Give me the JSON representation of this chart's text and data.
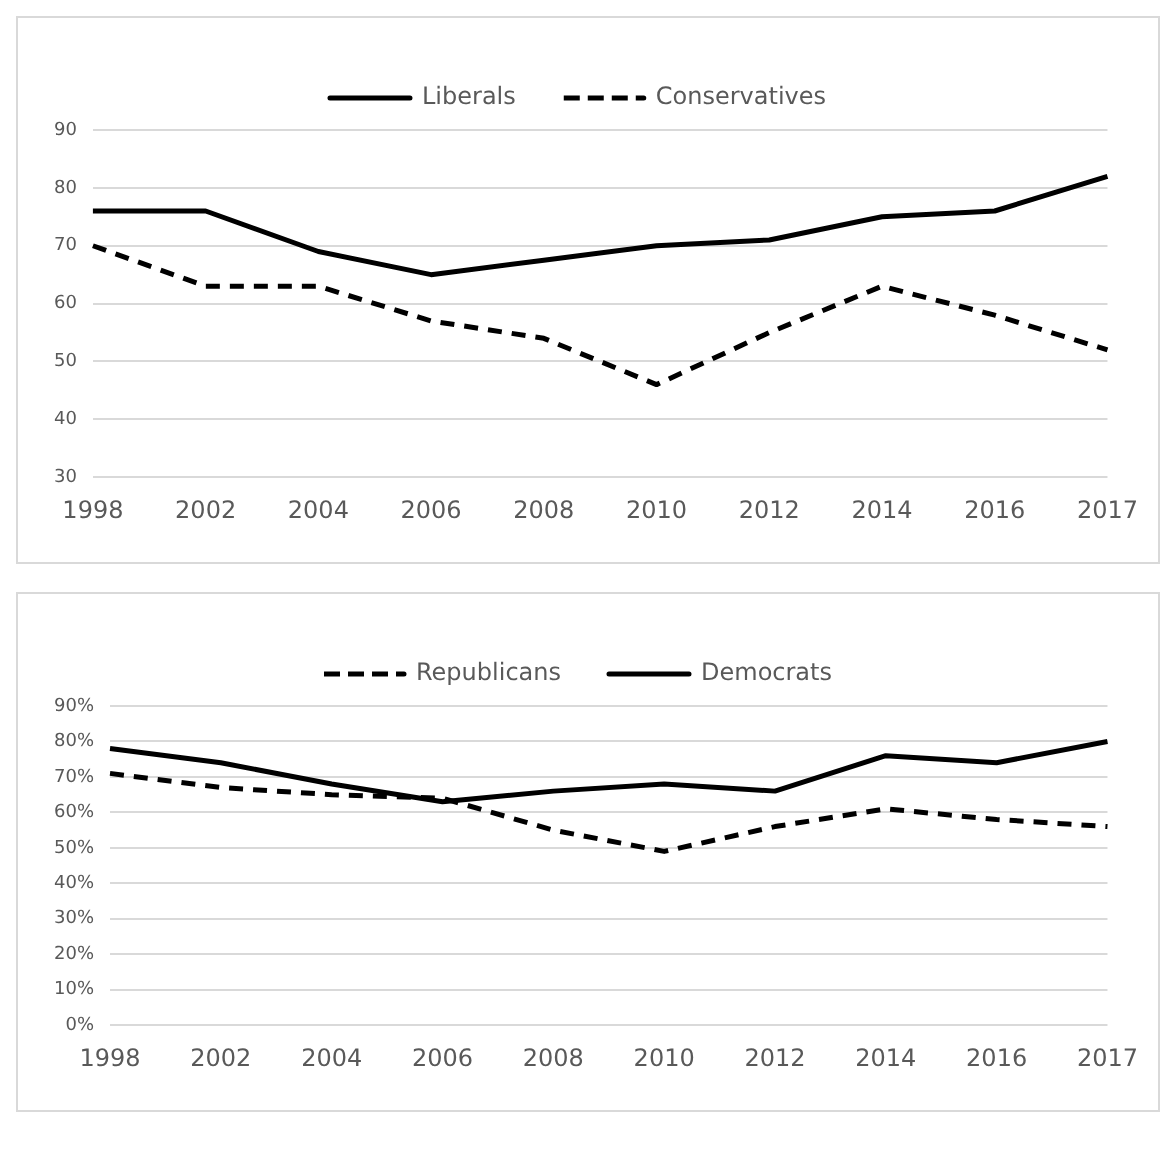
{
  "chart_data": [
    {
      "type": "line",
      "categories": [
        "1998",
        "2002",
        "2004",
        "2006",
        "2008",
        "2010",
        "2012",
        "2014",
        "2016",
        "2017"
      ],
      "ylim": [
        30,
        90
      ],
      "yticks": [
        30,
        40,
        50,
        60,
        70,
        80,
        90
      ],
      "grid": "y",
      "legend": "top",
      "marker": "none",
      "series": [
        {
          "name": "Liberals",
          "color": "#000000",
          "line_style": "solid",
          "values": [
            76,
            76,
            69,
            65,
            67.5,
            70,
            71,
            75,
            76,
            82
          ]
        },
        {
          "name": "Conservatives",
          "color": "#000000",
          "line_style": "dashed",
          "values": [
            70,
            63,
            63,
            57,
            54,
            46,
            55,
            63,
            58,
            52
          ]
        }
      ]
    },
    {
      "type": "line",
      "categories": [
        "1998",
        "2002",
        "2004",
        "2006",
        "2008",
        "2010",
        "2012",
        "2014",
        "2016",
        "2017"
      ],
      "ylim": [
        0,
        90
      ],
      "yticks": [
        {
          "value": 0,
          "label": "0%"
        },
        {
          "value": 10,
          "label": "10%"
        },
        {
          "value": 20,
          "label": "20%"
        },
        {
          "value": 30,
          "label": "30%"
        },
        {
          "value": 40,
          "label": "40%"
        },
        {
          "value": 50,
          "label": "50%"
        },
        {
          "value": 60,
          "label": "60%"
        },
        {
          "value": 70,
          "label": "70%"
        },
        {
          "value": 80,
          "label": "80%"
        },
        {
          "value": 90,
          "label": "90%"
        }
      ],
      "grid": "y",
      "legend": "top",
      "marker": "none",
      "series": [
        {
          "name": "Republicans",
          "color": "#000000",
          "line_style": "dashed",
          "values": [
            71,
            67,
            65,
            64,
            55,
            49,
            56,
            61,
            58,
            56
          ]
        },
        {
          "name": "Democrats",
          "color": "#000000",
          "line_style": "solid",
          "values": [
            78,
            74,
            68,
            63,
            66,
            68,
            66,
            76,
            74,
            80
          ]
        }
      ]
    }
  ]
}
